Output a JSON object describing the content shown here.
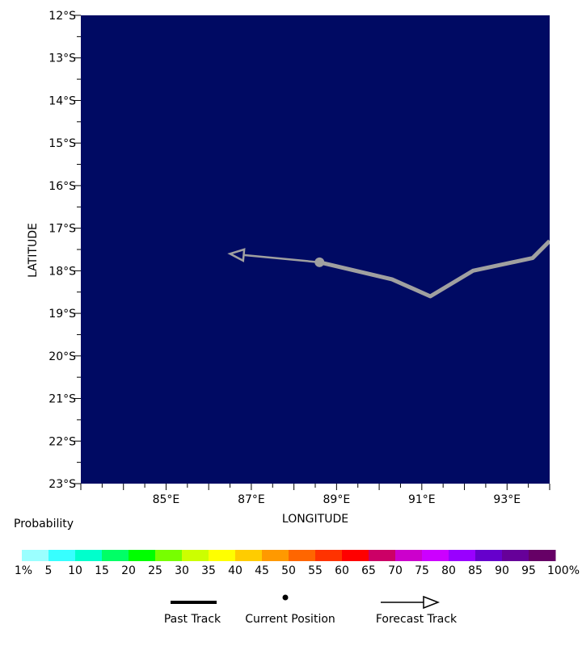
{
  "map": {
    "ocean_color": "#000a63",
    "xlabel": "LONGITUDE",
    "ylabel": "LATITUDE",
    "xlim": [
      83,
      94
    ],
    "ylim": [
      -23,
      -12
    ],
    "lon_ticks": [
      {
        "lon": 85,
        "label": "85°E"
      },
      {
        "lon": 87,
        "label": "87°E"
      },
      {
        "lon": 89,
        "label": "89°E"
      },
      {
        "lon": 91,
        "label": "91°E"
      },
      {
        "lon": 93,
        "label": "93°E"
      }
    ],
    "lat_ticks": [
      {
        "lat": -12,
        "label": "12°S"
      },
      {
        "lat": -13,
        "label": "13°S"
      },
      {
        "lat": -14,
        "label": "14°S"
      },
      {
        "lat": -15,
        "label": "15°S"
      },
      {
        "lat": -16,
        "label": "16°S"
      },
      {
        "lat": -17,
        "label": "17°S"
      },
      {
        "lat": -18,
        "label": "18°S"
      },
      {
        "lat": -19,
        "label": "19°S"
      },
      {
        "lat": -20,
        "label": "20°S"
      },
      {
        "lat": -21,
        "label": "21°S"
      },
      {
        "lat": -22,
        "label": "22°S"
      },
      {
        "lat": -23,
        "label": "23°S"
      }
    ],
    "track_color": "#a0a0a0",
    "past_track": [
      {
        "lon": 94.0,
        "lat": -17.3
      },
      {
        "lon": 93.6,
        "lat": -17.7
      },
      {
        "lon": 92.2,
        "lat": -18.0
      },
      {
        "lon": 91.2,
        "lat": -18.6
      },
      {
        "lon": 90.3,
        "lat": -18.2
      },
      {
        "lon": 88.6,
        "lat": -17.8
      }
    ],
    "current_position": {
      "lon": 88.6,
      "lat": -17.8
    },
    "forecast_track": [
      {
        "lon": 88.6,
        "lat": -17.8
      },
      {
        "lon": 86.5,
        "lat": -17.6
      }
    ]
  },
  "legend": {
    "title": "Probability",
    "bins": [
      {
        "color": "#9bffff"
      },
      {
        "color": "#37ffff"
      },
      {
        "color": "#00ffcc"
      },
      {
        "color": "#00ff66"
      },
      {
        "color": "#00ff00"
      },
      {
        "color": "#77ff00"
      },
      {
        "color": "#ccff00"
      },
      {
        "color": "#ffff00"
      },
      {
        "color": "#ffcc00"
      },
      {
        "color": "#ff9900"
      },
      {
        "color": "#ff6600"
      },
      {
        "color": "#ff3300"
      },
      {
        "color": "#ff0000"
      },
      {
        "color": "#cc0066"
      },
      {
        "color": "#cc00cc"
      },
      {
        "color": "#cc00ff"
      },
      {
        "color": "#9900ff"
      },
      {
        "color": "#6600cc"
      },
      {
        "color": "#660099"
      },
      {
        "color": "#660066"
      }
    ],
    "labels": [
      "1%",
      "5",
      "10",
      "15",
      "20",
      "25",
      "30",
      "35",
      "40",
      "45",
      "50",
      "55",
      "60",
      "65",
      "70",
      "75",
      "80",
      "85",
      "90",
      "95",
      "100%"
    ],
    "key": {
      "past_track": "Past Track",
      "current_position": "Current Position",
      "forecast_track": "Forecast Track"
    }
  }
}
